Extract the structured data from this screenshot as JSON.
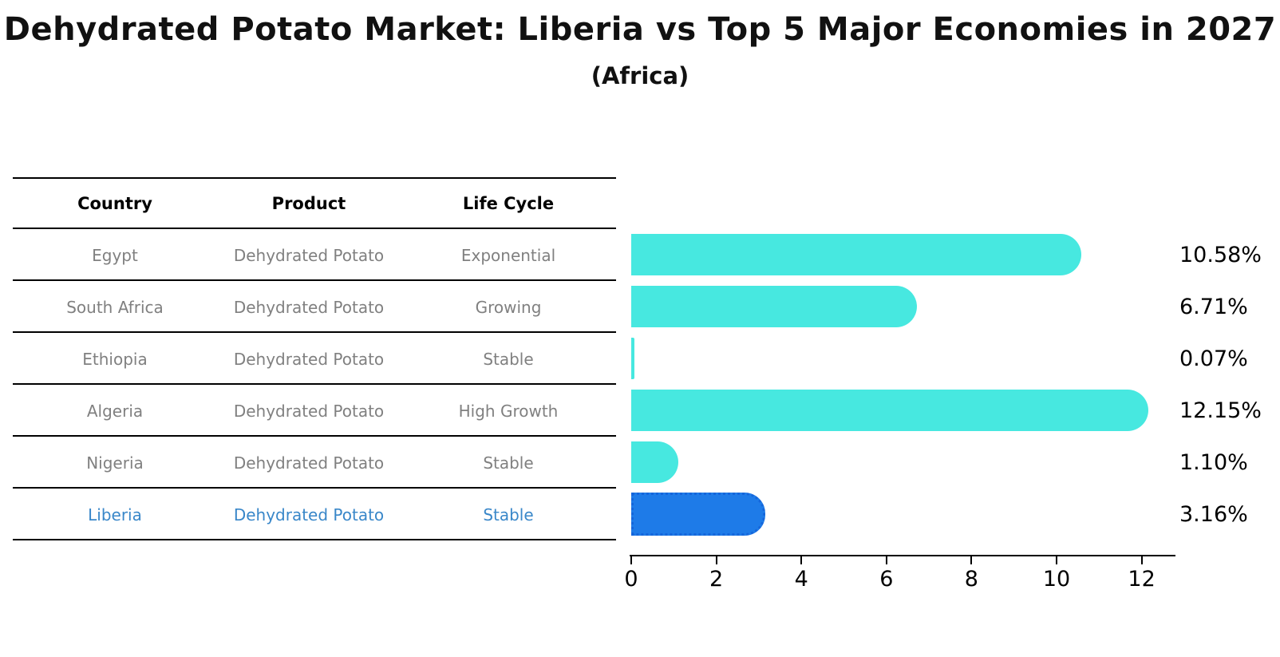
{
  "title": "Dehydrated Potato Market: Liberia vs Top 5 Major Economies in 2027",
  "subtitle": "(Africa)",
  "table": {
    "columns": [
      "Country",
      "Product",
      "Life Cycle"
    ],
    "rows": [
      {
        "cells": [
          "Egypt",
          "Dehydrated Potato",
          "Exponential"
        ],
        "highlight": false
      },
      {
        "cells": [
          "South Africa",
          "Dehydrated Potato",
          "Growing"
        ],
        "highlight": false
      },
      {
        "cells": [
          "Ethiopia",
          "Dehydrated Potato",
          "Stable"
        ],
        "highlight": false
      },
      {
        "cells": [
          "Algeria",
          "Dehydrated Potato",
          "High Growth"
        ],
        "highlight": false
      },
      {
        "cells": [
          "Nigeria",
          "Dehydrated Potato",
          "Stable"
        ],
        "highlight": false
      },
      {
        "cells": [
          "Liberia",
          "Dehydrated Potato",
          "Stable"
        ],
        "highlight": true
      }
    ]
  },
  "chart_data": {
    "type": "bar",
    "orientation": "horizontal",
    "title": "Dehydrated Potato Market: Liberia vs Top 5 Major Economies in 2027 (Africa)",
    "categories": [
      "Egypt",
      "South Africa",
      "Ethiopia",
      "Algeria",
      "Nigeria",
      "Liberia"
    ],
    "values": [
      10.58,
      6.71,
      0.07,
      12.15,
      1.1,
      3.16
    ],
    "labels": [
      "10.58%",
      "6.71%",
      "0.07%",
      "12.15%",
      "1.10%",
      "3.16%"
    ],
    "xlabel": "",
    "ylabel": "",
    "xlim": [
      0,
      12.85
    ],
    "xticks": [
      0,
      2,
      4,
      6,
      8,
      10,
      12
    ],
    "grid": false,
    "legend": false,
    "bar_color": "#47E8E0",
    "highlight_color": "#1E7BE8",
    "highlight_border_color": "#1566DB",
    "highlight_index": 5
  },
  "colors": {
    "background": "#FFFFFF",
    "row_text": "#808080",
    "highlight_text": "#3987C9",
    "header_text": "#000000",
    "axis": "#000000"
  }
}
